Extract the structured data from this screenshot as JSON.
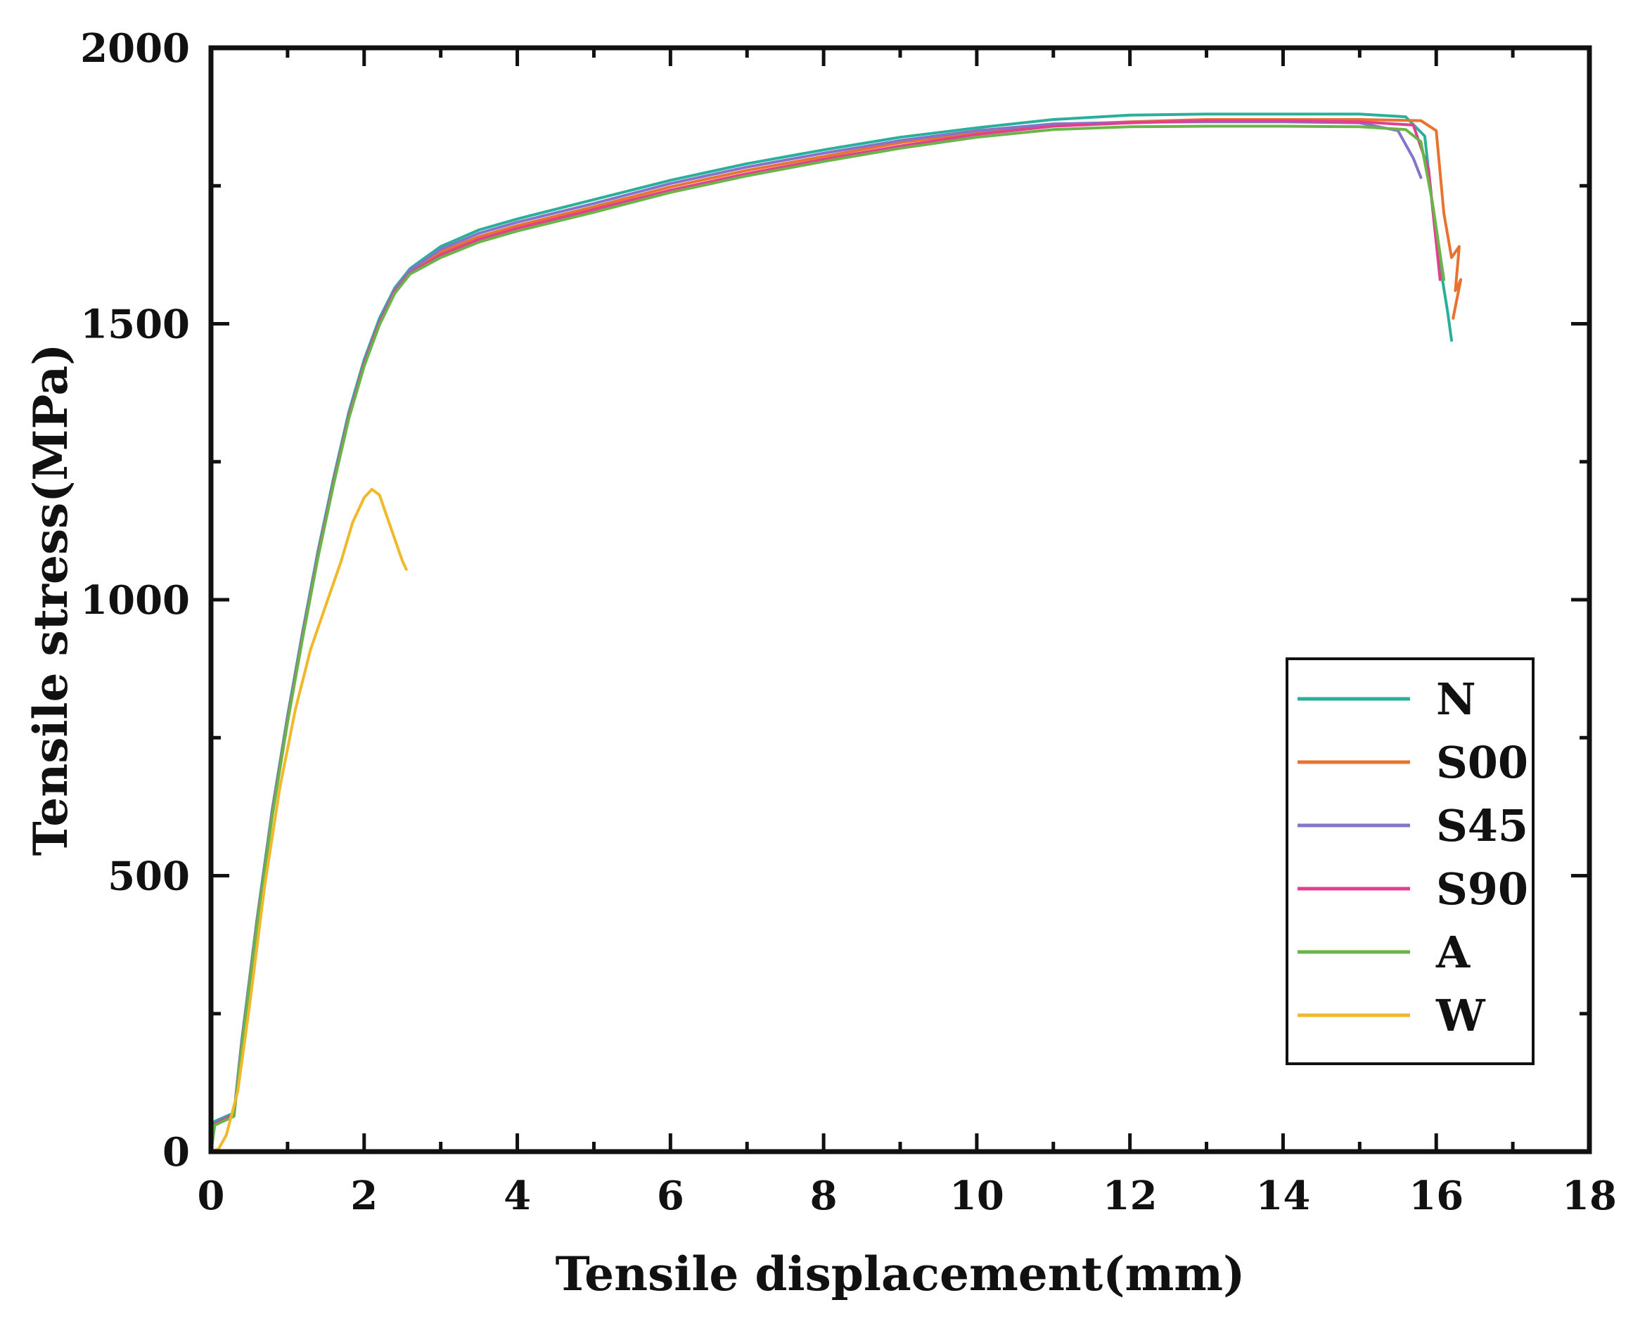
{
  "chart_data": {
    "type": "line",
    "title": "",
    "xlabel": "Tensile displacement(mm)",
    "ylabel": "Tensile stress(MPa)",
    "xlim": [
      0,
      18
    ],
    "ylim": [
      0,
      2000
    ],
    "x_ticks": [
      0,
      2,
      4,
      6,
      8,
      10,
      12,
      14,
      16,
      18
    ],
    "y_ticks": [
      0,
      500,
      1000,
      1500,
      2000
    ],
    "x_tick_labels": [
      "0",
      "2",
      "4",
      "6",
      "8",
      "10",
      "12",
      "14",
      "16",
      "18"
    ],
    "y_tick_labels": [
      "0",
      "500",
      "1000",
      "1500",
      "2000"
    ],
    "grid": false,
    "legend_position": "bottom-right",
    "series": [
      {
        "name": "N",
        "color": "#2ab09a",
        "x": [
          0,
          0.05,
          0.3,
          0.4,
          0.6,
          0.8,
          1.0,
          1.2,
          1.4,
          1.6,
          1.8,
          2.0,
          2.2,
          2.4,
          2.6,
          2.8,
          3.0,
          3.5,
          4.0,
          5.0,
          6.0,
          7.0,
          8.0,
          9.0,
          10.0,
          11.0,
          12.0,
          13.0,
          14.0,
          15.0,
          15.6,
          15.85,
          16.0,
          16.15,
          16.2
        ],
        "y": [
          0,
          55,
          70,
          200,
          420,
          620,
          790,
          945,
          1090,
          1220,
          1340,
          1435,
          1510,
          1565,
          1600,
          1620,
          1640,
          1670,
          1690,
          1725,
          1760,
          1790,
          1815,
          1838,
          1855,
          1870,
          1878,
          1880,
          1880,
          1880,
          1875,
          1840,
          1650,
          1520,
          1470
        ]
      },
      {
        "name": "S00",
        "color": "#e87330",
        "x": [
          0,
          0.05,
          0.3,
          0.4,
          0.6,
          0.8,
          1.0,
          1.2,
          1.4,
          1.6,
          1.8,
          2.0,
          2.2,
          2.4,
          2.6,
          2.8,
          3.0,
          3.5,
          4.0,
          5.0,
          6.0,
          7.0,
          8.0,
          9.0,
          10.0,
          11.0,
          12.0,
          13.0,
          14.0,
          15.0,
          15.8,
          16.0,
          16.1,
          16.2,
          16.3,
          16.25,
          16.32,
          16.22
        ],
        "y": [
          0,
          50,
          65,
          190,
          410,
          610,
          780,
          935,
          1080,
          1210,
          1330,
          1425,
          1500,
          1560,
          1595,
          1612,
          1630,
          1658,
          1678,
          1712,
          1748,
          1778,
          1803,
          1828,
          1847,
          1860,
          1866,
          1870,
          1870,
          1870,
          1868,
          1850,
          1700,
          1620,
          1640,
          1560,
          1580,
          1510
        ]
      },
      {
        "name": "S45",
        "color": "#8474cc",
        "x": [
          0,
          0.05,
          0.3,
          0.4,
          0.6,
          0.8,
          1.0,
          1.2,
          1.4,
          1.6,
          1.8,
          2.0,
          2.2,
          2.4,
          2.6,
          2.8,
          3.0,
          3.5,
          4.0,
          5.0,
          6.0,
          7.0,
          8.0,
          9.0,
          10.0,
          11.0,
          12.0,
          13.0,
          14.0,
          15.0,
          15.5,
          15.7,
          15.8
        ],
        "y": [
          0,
          52,
          68,
          195,
          415,
          615,
          785,
          940,
          1085,
          1215,
          1335,
          1430,
          1505,
          1562,
          1597,
          1616,
          1635,
          1664,
          1684,
          1718,
          1754,
          1784,
          1809,
          1832,
          1850,
          1862,
          1865,
          1866,
          1866,
          1864,
          1850,
          1800,
          1765
        ]
      },
      {
        "name": "S90",
        "color": "#e0408c",
        "x": [
          0,
          0.05,
          0.3,
          0.4,
          0.6,
          0.8,
          1.0,
          1.2,
          1.4,
          1.6,
          1.8,
          2.0,
          2.2,
          2.4,
          2.6,
          2.8,
          3.0,
          3.5,
          4.0,
          5.0,
          6.0,
          7.0,
          8.0,
          9.0,
          10.0,
          11.0,
          12.0,
          13.0,
          14.0,
          15.0,
          15.7,
          15.9,
          16.05
        ],
        "y": [
          0,
          50,
          66,
          192,
          412,
          612,
          782,
          937,
          1082,
          1212,
          1332,
          1427,
          1502,
          1558,
          1592,
          1608,
          1625,
          1653,
          1673,
          1707,
          1742,
          1772,
          1798,
          1822,
          1843,
          1858,
          1864,
          1868,
          1868,
          1866,
          1860,
          1780,
          1580
        ]
      },
      {
        "name": "A",
        "color": "#6ab54a",
        "x": [
          0,
          0.05,
          0.3,
          0.4,
          0.6,
          0.8,
          1.0,
          1.2,
          1.4,
          1.6,
          1.8,
          2.0,
          2.2,
          2.4,
          2.6,
          2.8,
          3.0,
          3.5,
          4.0,
          5.0,
          6.0,
          7.0,
          8.0,
          9.0,
          10.0,
          11.0,
          12.0,
          13.0,
          14.0,
          15.0,
          15.6,
          15.8,
          15.95,
          16.1
        ],
        "y": [
          0,
          48,
          64,
          188,
          408,
          608,
          778,
          933,
          1078,
          1208,
          1328,
          1423,
          1498,
          1555,
          1590,
          1605,
          1620,
          1648,
          1668,
          1702,
          1738,
          1768,
          1794,
          1818,
          1838,
          1852,
          1857,
          1858,
          1858,
          1857,
          1852,
          1830,
          1720,
          1580
        ]
      },
      {
        "name": "W",
        "color": "#f0b82a",
        "x": [
          0,
          0.1,
          0.2,
          0.35,
          0.5,
          0.7,
          0.9,
          1.1,
          1.3,
          1.5,
          1.7,
          1.85,
          2.0,
          2.1,
          2.2,
          2.3,
          2.4,
          2.5,
          2.55
        ],
        "y": [
          0,
          5,
          30,
          110,
          260,
          480,
          660,
          800,
          910,
          990,
          1070,
          1140,
          1185,
          1200,
          1190,
          1150,
          1110,
          1070,
          1055
        ]
      }
    ]
  }
}
